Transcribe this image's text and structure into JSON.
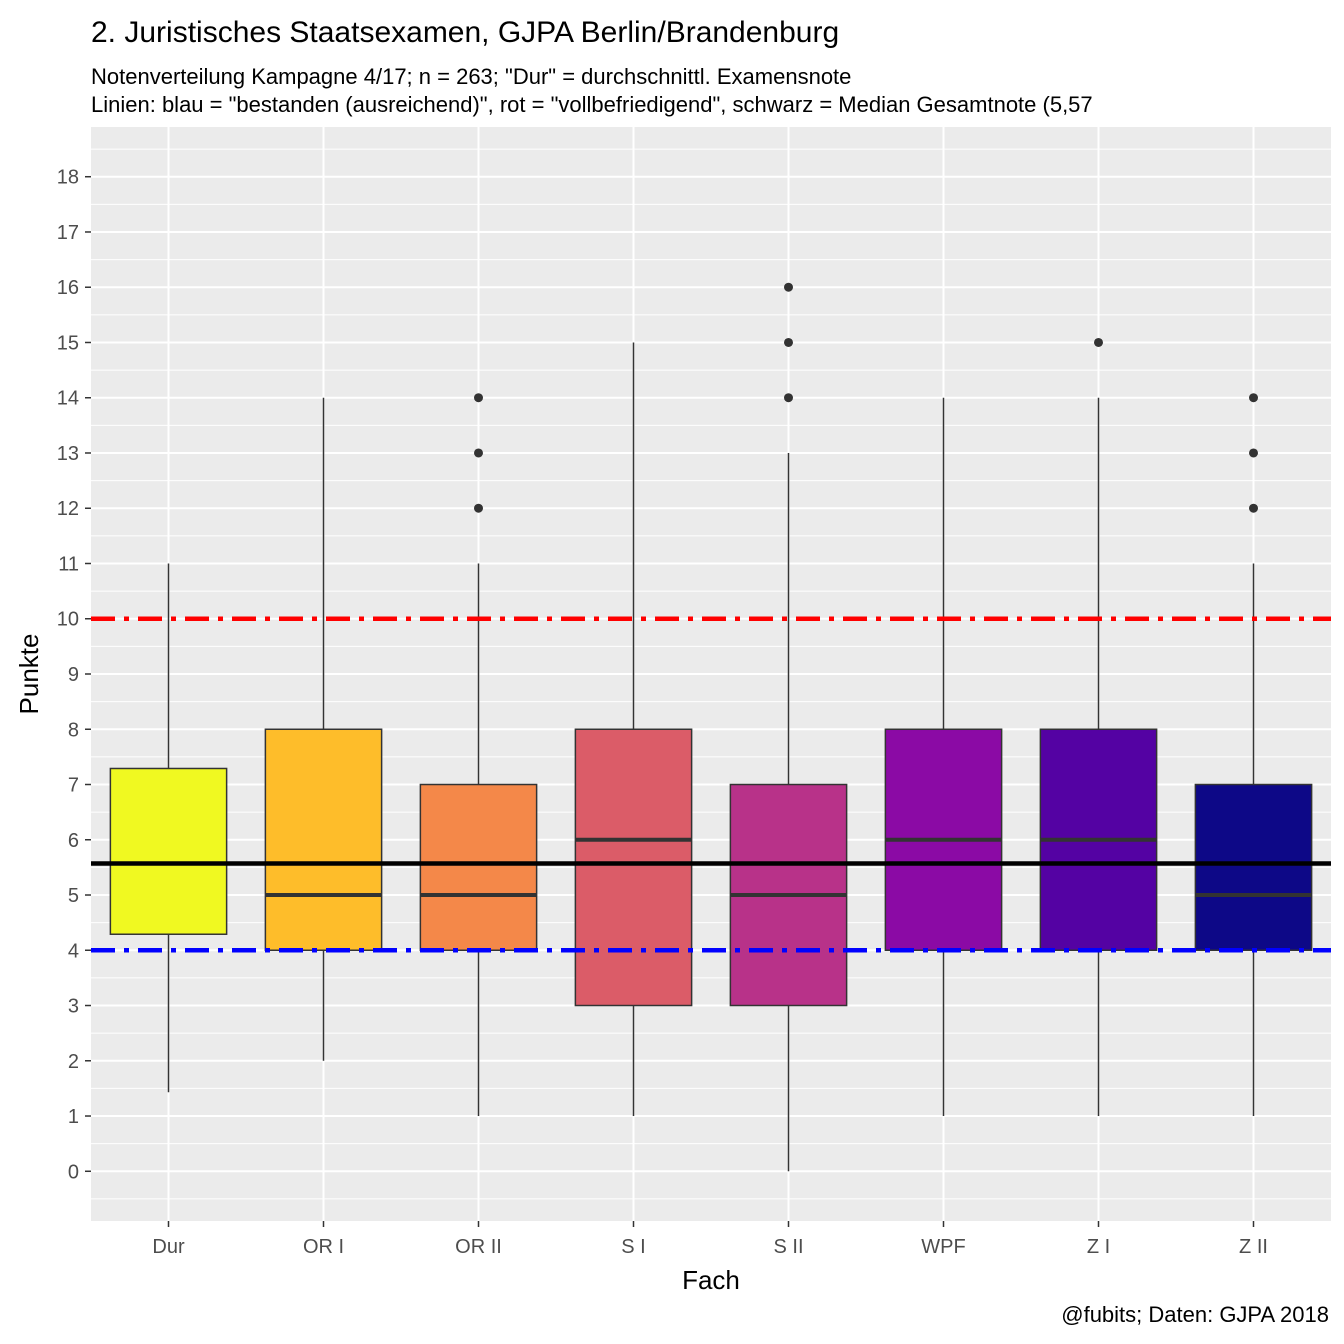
{
  "chart_data": {
    "type": "boxplot",
    "title": "2. Juristisches Staatsexamen, GJPA Berlin/Brandenburg",
    "subtitle_line1": "Notenverteilung Kampagne 4/17; n = 263; \"Dur\" = durchschnittl. Examensnote",
    "subtitle_line2": "Linien: blau  = \"bestanden (ausreichend)\", rot  = \"vollbefriedigend\", schwarz  = Median Gesamtnote (5,57",
    "xlabel": "Fach",
    "ylabel": "Punkte",
    "caption": "@fubits; Daten: GJPA 2018",
    "categories": [
      "Dur",
      "OR I",
      "OR II",
      "S I",
      "S II",
      "WPF",
      "Z I",
      "Z II"
    ],
    "yticks": [
      0,
      1,
      2,
      3,
      4,
      5,
      6,
      7,
      8,
      9,
      10,
      11,
      12,
      13,
      14,
      15,
      16,
      17,
      18
    ],
    "ylim": [
      -0.9,
      18.9
    ],
    "grid": true,
    "boxes": [
      {
        "category": "Dur",
        "min": 1.43,
        "q1": 4.29,
        "median": 5.57,
        "q3": 7.29,
        "max": 11,
        "outliers": [],
        "color": "#f0f921"
      },
      {
        "category": "OR I",
        "min": 2,
        "q1": 4,
        "median": 5,
        "q3": 8,
        "max": 14,
        "outliers": [],
        "color": "#febd2a"
      },
      {
        "category": "OR II",
        "min": 1,
        "q1": 4,
        "median": 5,
        "q3": 7,
        "max": 11,
        "outliers": [
          12,
          13,
          14
        ],
        "color": "#f48849"
      },
      {
        "category": "S I",
        "min": 1,
        "q1": 3,
        "median": 6,
        "q3": 8,
        "max": 15,
        "outliers": [],
        "color": "#db5c68"
      },
      {
        "category": "S II",
        "min": 0,
        "q1": 3,
        "median": 5,
        "q3": 7,
        "max": 13,
        "outliers": [
          14,
          15,
          16
        ],
        "color": "#b83289"
      },
      {
        "category": "WPF",
        "min": 1,
        "q1": 4,
        "median": 6,
        "q3": 8,
        "max": 14,
        "outliers": [],
        "color": "#8b0aa5"
      },
      {
        "category": "Z I",
        "min": 1,
        "q1": 4,
        "median": 6,
        "q3": 8,
        "max": 14,
        "outliers": [
          15
        ],
        "color": "#5402a3"
      },
      {
        "category": "Z II",
        "min": 1,
        "q1": 4,
        "median": 5,
        "q3": 7,
        "max": 11,
        "outliers": [
          12,
          13,
          14
        ],
        "color": "#0d0887"
      }
    ],
    "reference_lines": [
      {
        "y": 10,
        "color": "#ff0000",
        "style": "dashdot"
      },
      {
        "y": 4,
        "color": "#0000ff",
        "style": "dashdot"
      },
      {
        "y": 5.57,
        "color": "#000000",
        "style": "solid"
      }
    ]
  }
}
